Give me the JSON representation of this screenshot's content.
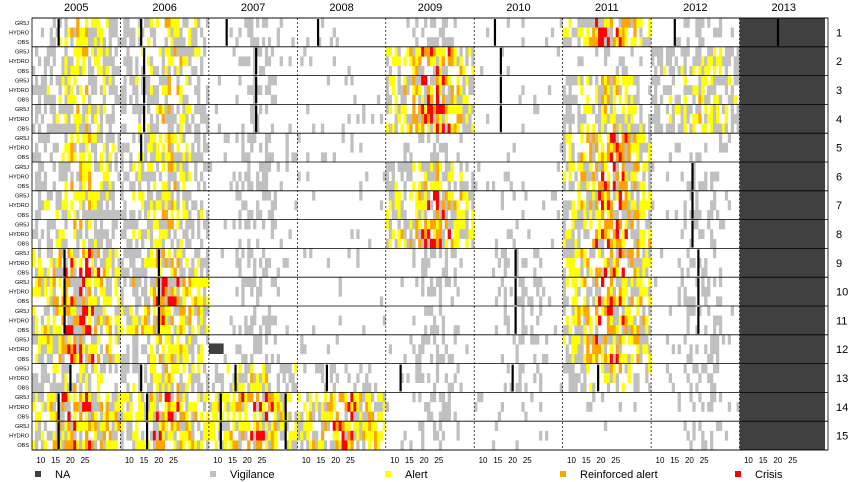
{
  "chart_data": {
    "type": "heatmap",
    "title": "",
    "xlabel": "",
    "ylabel": "",
    "years": [
      "2005",
      "2006",
      "2007",
      "2008",
      "2009",
      "2010",
      "2011",
      "2012",
      "2013"
    ],
    "x_ticks": [
      "10",
      "15",
      "20",
      "25"
    ],
    "source_labels": [
      "GR5J",
      "HYDRO",
      "OBS"
    ],
    "row_numbers": [
      "1",
      "2",
      "3",
      "4",
      "5",
      "6",
      "7",
      "8",
      "9",
      "10",
      "11",
      "12",
      "13",
      "14",
      "15"
    ],
    "weeks_per_year": 30,
    "week_offset": 7,
    "na_block": {
      "year": "2013",
      "from_week": 7,
      "to_week": 36
    },
    "colors": {
      "na": "#404040",
      "vigilance": "#c0c0c0",
      "alert": "#ffff00",
      "reinforced_alert": "#ffa500",
      "crisis": "#ff0000"
    },
    "legend": [
      {
        "key": "na",
        "label": "NA"
      },
      {
        "key": "vigilance",
        "label": "Vigilance"
      },
      {
        "key": "alert",
        "label": "Alert"
      },
      {
        "key": "reinforced_alert",
        "label": "Reinforced alert"
      },
      {
        "key": "crisis",
        "label": "Crisis"
      }
    ],
    "intensity": [
      [
        3,
        0,
        0,
        0,
        1,
        0,
        0,
        0,
        0,
        0,
        0,
        0,
        1,
        2,
        4,
        0,
        0,
        1,
        2,
        3,
        0,
        0,
        0,
        1,
        4,
        0,
        0,
        0,
        1,
        3,
        0,
        0,
        0,
        1,
        3,
        0,
        0,
        0,
        1,
        3,
        0,
        0,
        0,
        0,
        0
      ],
      [
        3,
        1,
        0,
        0,
        1,
        0,
        0,
        0,
        0,
        0,
        0,
        0,
        1,
        2,
        4,
        0,
        0,
        1,
        2,
        3,
        0,
        0,
        0,
        1,
        4,
        0,
        0,
        0,
        1,
        3,
        0,
        0,
        0,
        1,
        3,
        0,
        0,
        0,
        1,
        3,
        0,
        0,
        0,
        0,
        0
      ],
      [
        3,
        1,
        0,
        0,
        1,
        0,
        0,
        0,
        0,
        0,
        0,
        0,
        1,
        2,
        4,
        0,
        0,
        1,
        2,
        3,
        0,
        0,
        0,
        1,
        4,
        0,
        0,
        0,
        1,
        3,
        0,
        0,
        0,
        1,
        3,
        0,
        0,
        0,
        1,
        3,
        0,
        0,
        0,
        0,
        0
      ],
      [
        3,
        1,
        0,
        0,
        1,
        0,
        0,
        0,
        0,
        0,
        0,
        0,
        1,
        2,
        4,
        0,
        0,
        1,
        2,
        3,
        0,
        0,
        0,
        1,
        4,
        0,
        0,
        0,
        1,
        3,
        0,
        0,
        0,
        1,
        3,
        0,
        0,
        0,
        1,
        3,
        0,
        0,
        0,
        0,
        0
      ],
      [
        3,
        0,
        0,
        0,
        1,
        0,
        0,
        0,
        0,
        0,
        0,
        0,
        1,
        2,
        4,
        0,
        0,
        1,
        2,
        3,
        0,
        0,
        0,
        1,
        4,
        0,
        0,
        0,
        1,
        3,
        0,
        0,
        0,
        1,
        3,
        0,
        0,
        0,
        1,
        3,
        0,
        0,
        0,
        0,
        0
      ],
      [
        3,
        1,
        0,
        0,
        1,
        0,
        0,
        0,
        0,
        0,
        0,
        0,
        1,
        2,
        4,
        0,
        0,
        1,
        2,
        3,
        0,
        0,
        0,
        1,
        4,
        0,
        0,
        0,
        1,
        3,
        0,
        0,
        0,
        1,
        3,
        0,
        0,
        0,
        1,
        3,
        0,
        0,
        0,
        0,
        0
      ],
      [
        3,
        1,
        0,
        0,
        1,
        0,
        0,
        0,
        0,
        0,
        0,
        0,
        1,
        2,
        4,
        0,
        0,
        1,
        2,
        3,
        0,
        0,
        0,
        1,
        4,
        0,
        0,
        0,
        1,
        3,
        0,
        0,
        0,
        1,
        3,
        0,
        0,
        0,
        1,
        3,
        0,
        0,
        0,
        0,
        0
      ],
      [
        3,
        1,
        0,
        0,
        1,
        0,
        0,
        0,
        0,
        0,
        0,
        0,
        1,
        2,
        4,
        0,
        0,
        1,
        2,
        3,
        0,
        0,
        0,
        1,
        4,
        0,
        0,
        0,
        1,
        3,
        0,
        0,
        0,
        1,
        3,
        0,
        0,
        0,
        1,
        3,
        0,
        0,
        0,
        0,
        0
      ],
      [
        3,
        2,
        0,
        0,
        1,
        0,
        0,
        0,
        0,
        0,
        0,
        0,
        1,
        2,
        4,
        0,
        0,
        1,
        2,
        3,
        0,
        0,
        0,
        1,
        4,
        0,
        0,
        0,
        1,
        3,
        0,
        0,
        0,
        1,
        3,
        0,
        0,
        0,
        1,
        3,
        0,
        0,
        0,
        0,
        0
      ],
      [
        3,
        2,
        0,
        0,
        1,
        0,
        0,
        0,
        0,
        0,
        0,
        0,
        1,
        2,
        4,
        0,
        0,
        1,
        2,
        3,
        0,
        0,
        0,
        1,
        4,
        0,
        0,
        0,
        1,
        3,
        0,
        0,
        0,
        1,
        3,
        0,
        0,
        0,
        1,
        3,
        0,
        0,
        0,
        0,
        0
      ],
      [
        3,
        2,
        0,
        0,
        1,
        0,
        0,
        0,
        0,
        0,
        0,
        0,
        1,
        2,
        4,
        0,
        0,
        1,
        2,
        3,
        0,
        0,
        0,
        1,
        4,
        0,
        0,
        0,
        1,
        3,
        0,
        0,
        0,
        1,
        3,
        0,
        0,
        0,
        1,
        3,
        0,
        0,
        0,
        0,
        0
      ],
      [
        4,
        2,
        0,
        0,
        1,
        0,
        0,
        0,
        0,
        0,
        0,
        0,
        1,
        2,
        4,
        0,
        0,
        1,
        2,
        3,
        0,
        0,
        0,
        1,
        4,
        0,
        0,
        0,
        1,
        3,
        0,
        0,
        0,
        1,
        3,
        0,
        0,
        0,
        1,
        3,
        0,
        0,
        0,
        0,
        0
      ],
      [
        3,
        2,
        1,
        0,
        1,
        0,
        0,
        0,
        0,
        0,
        0,
        0,
        1,
        2,
        4,
        0,
        0,
        1,
        2,
        3,
        0,
        0,
        0,
        1,
        4,
        0,
        0,
        0,
        1,
        3,
        0,
        0,
        0,
        1,
        3,
        0,
        0,
        0,
        1,
        3,
        0,
        0,
        0,
        0,
        0
      ],
      [
        3,
        3,
        2,
        3,
        1,
        0,
        0,
        0,
        0,
        0,
        0,
        0,
        1,
        2,
        4,
        0,
        0,
        1,
        2,
        3,
        0,
        0,
        0,
        1,
        4,
        0,
        0,
        0,
        1,
        3,
        0,
        0,
        0,
        1,
        3,
        0,
        0,
        0,
        1,
        3,
        0,
        0,
        0,
        0,
        0
      ],
      [
        3,
        3,
        3,
        3,
        1,
        0,
        0,
        0,
        0,
        0,
        0,
        0,
        1,
        2,
        4,
        0,
        0,
        1,
        2,
        3,
        0,
        0,
        0,
        1,
        4,
        0,
        0,
        0,
        1,
        3,
        0,
        0,
        0,
        1,
        3,
        0,
        0,
        0,
        1,
        3,
        0,
        0,
        0,
        0,
        0
      ]
    ],
    "year_intensity": [
      [
        2,
        2,
        1,
        0,
        1,
        0,
        3,
        1,
        0
      ],
      [
        2,
        2,
        1,
        0,
        3,
        0,
        1,
        2,
        0
      ],
      [
        2,
        2,
        1,
        0,
        3,
        0,
        2,
        2,
        0
      ],
      [
        2,
        2,
        1,
        0,
        3,
        0,
        2,
        2,
        0
      ],
      [
        2,
        2,
        1,
        0,
        1,
        0,
        3,
        1,
        0
      ],
      [
        2,
        2,
        1,
        0,
        2,
        0,
        3,
        1,
        0
      ],
      [
        2,
        2,
        1,
        0,
        3,
        0,
        3,
        1,
        0
      ],
      [
        2,
        2,
        1,
        0,
        3,
        0,
        3,
        1,
        0
      ],
      [
        3,
        2,
        1,
        0,
        1,
        1,
        3,
        1,
        0
      ],
      [
        3,
        3,
        1,
        0,
        1,
        1,
        3,
        1,
        0
      ],
      [
        3,
        3,
        1,
        0,
        1,
        1,
        3,
        1,
        0
      ],
      [
        3,
        2,
        1,
        0,
        1,
        1,
        3,
        1,
        0
      ],
      [
        2,
        2,
        2,
        1,
        1,
        1,
        2,
        1,
        0
      ],
      [
        3,
        3,
        3,
        3,
        1,
        0,
        0,
        1,
        0
      ],
      [
        3,
        3,
        3,
        3,
        1,
        0,
        0,
        1,
        0
      ]
    ],
    "black_markers": [
      {
        "row": "1",
        "year": "2005",
        "week": 16
      },
      {
        "row": "1",
        "year": "2006",
        "week": 14
      },
      {
        "row": "1",
        "year": "2007",
        "week": 13
      },
      {
        "row": "1",
        "year": "2008",
        "week": 14
      },
      {
        "row": "1",
        "year": "2010",
        "week": 14
      },
      {
        "row": "1",
        "year": "2012",
        "week": 15
      },
      {
        "row": "1",
        "year": "2013",
        "week": 20
      },
      {
        "row": "2",
        "year": "2006",
        "week": 15
      },
      {
        "row": "2",
        "year": "2007",
        "week": 23
      },
      {
        "row": "2",
        "year": "2010",
        "week": 16
      },
      {
        "row": "3",
        "year": "2006",
        "week": 15
      },
      {
        "row": "3",
        "year": "2007",
        "week": 23
      },
      {
        "row": "3",
        "year": "2010",
        "week": 16
      },
      {
        "row": "4",
        "year": "2006",
        "week": 15
      },
      {
        "row": "4",
        "year": "2007",
        "week": 23
      },
      {
        "row": "4",
        "year": "2010",
        "week": 16
      },
      {
        "row": "5",
        "year": "2006",
        "week": 14
      },
      {
        "row": "6",
        "year": "2012",
        "week": 21
      },
      {
        "row": "7",
        "year": "2012",
        "week": 21
      },
      {
        "row": "8",
        "year": "2012",
        "week": 21
      },
      {
        "row": "9",
        "year": "2005",
        "week": 18
      },
      {
        "row": "9",
        "year": "2006",
        "week": 20
      },
      {
        "row": "9",
        "year": "2010",
        "week": 21
      },
      {
        "row": "9",
        "year": "2012",
        "week": 23
      },
      {
        "row": "10",
        "year": "2005",
        "week": 18
      },
      {
        "row": "10",
        "year": "2006",
        "week": 20
      },
      {
        "row": "10",
        "year": "2010",
        "week": 21
      },
      {
        "row": "10",
        "year": "2012",
        "week": 23
      },
      {
        "row": "11",
        "year": "2005",
        "week": 18
      },
      {
        "row": "11",
        "year": "2006",
        "week": 20
      },
      {
        "row": "11",
        "year": "2010",
        "week": 21
      },
      {
        "row": "11",
        "year": "2012",
        "week": 23
      },
      {
        "row": "13",
        "year": "2005",
        "week": 20
      },
      {
        "row": "13",
        "year": "2006",
        "week": 14
      },
      {
        "row": "13",
        "year": "2007",
        "week": 16
      },
      {
        "row": "13",
        "year": "2008",
        "week": 17
      },
      {
        "row": "13",
        "year": "2009",
        "week": 12
      },
      {
        "row": "13",
        "year": "2010",
        "week": 20
      },
      {
        "row": "13",
        "year": "2011",
        "week": 19
      },
      {
        "row": "14",
        "year": "2005",
        "week": 16
      },
      {
        "row": "14",
        "year": "2006",
        "week": 16
      },
      {
        "row": "14",
        "year": "2007",
        "week": 11
      },
      {
        "row": "14",
        "year": "2007",
        "week": 33
      },
      {
        "row": "15",
        "year": "2005",
        "week": 16
      },
      {
        "row": "15",
        "year": "2006",
        "week": 16
      },
      {
        "row": "15",
        "year": "2007",
        "week": 11
      },
      {
        "row": "15",
        "year": "2007",
        "week": 33
      }
    ],
    "na_cells": [
      {
        "row": "12",
        "year": "2007",
        "from_week": 7,
        "to_week": 12
      }
    ]
  }
}
